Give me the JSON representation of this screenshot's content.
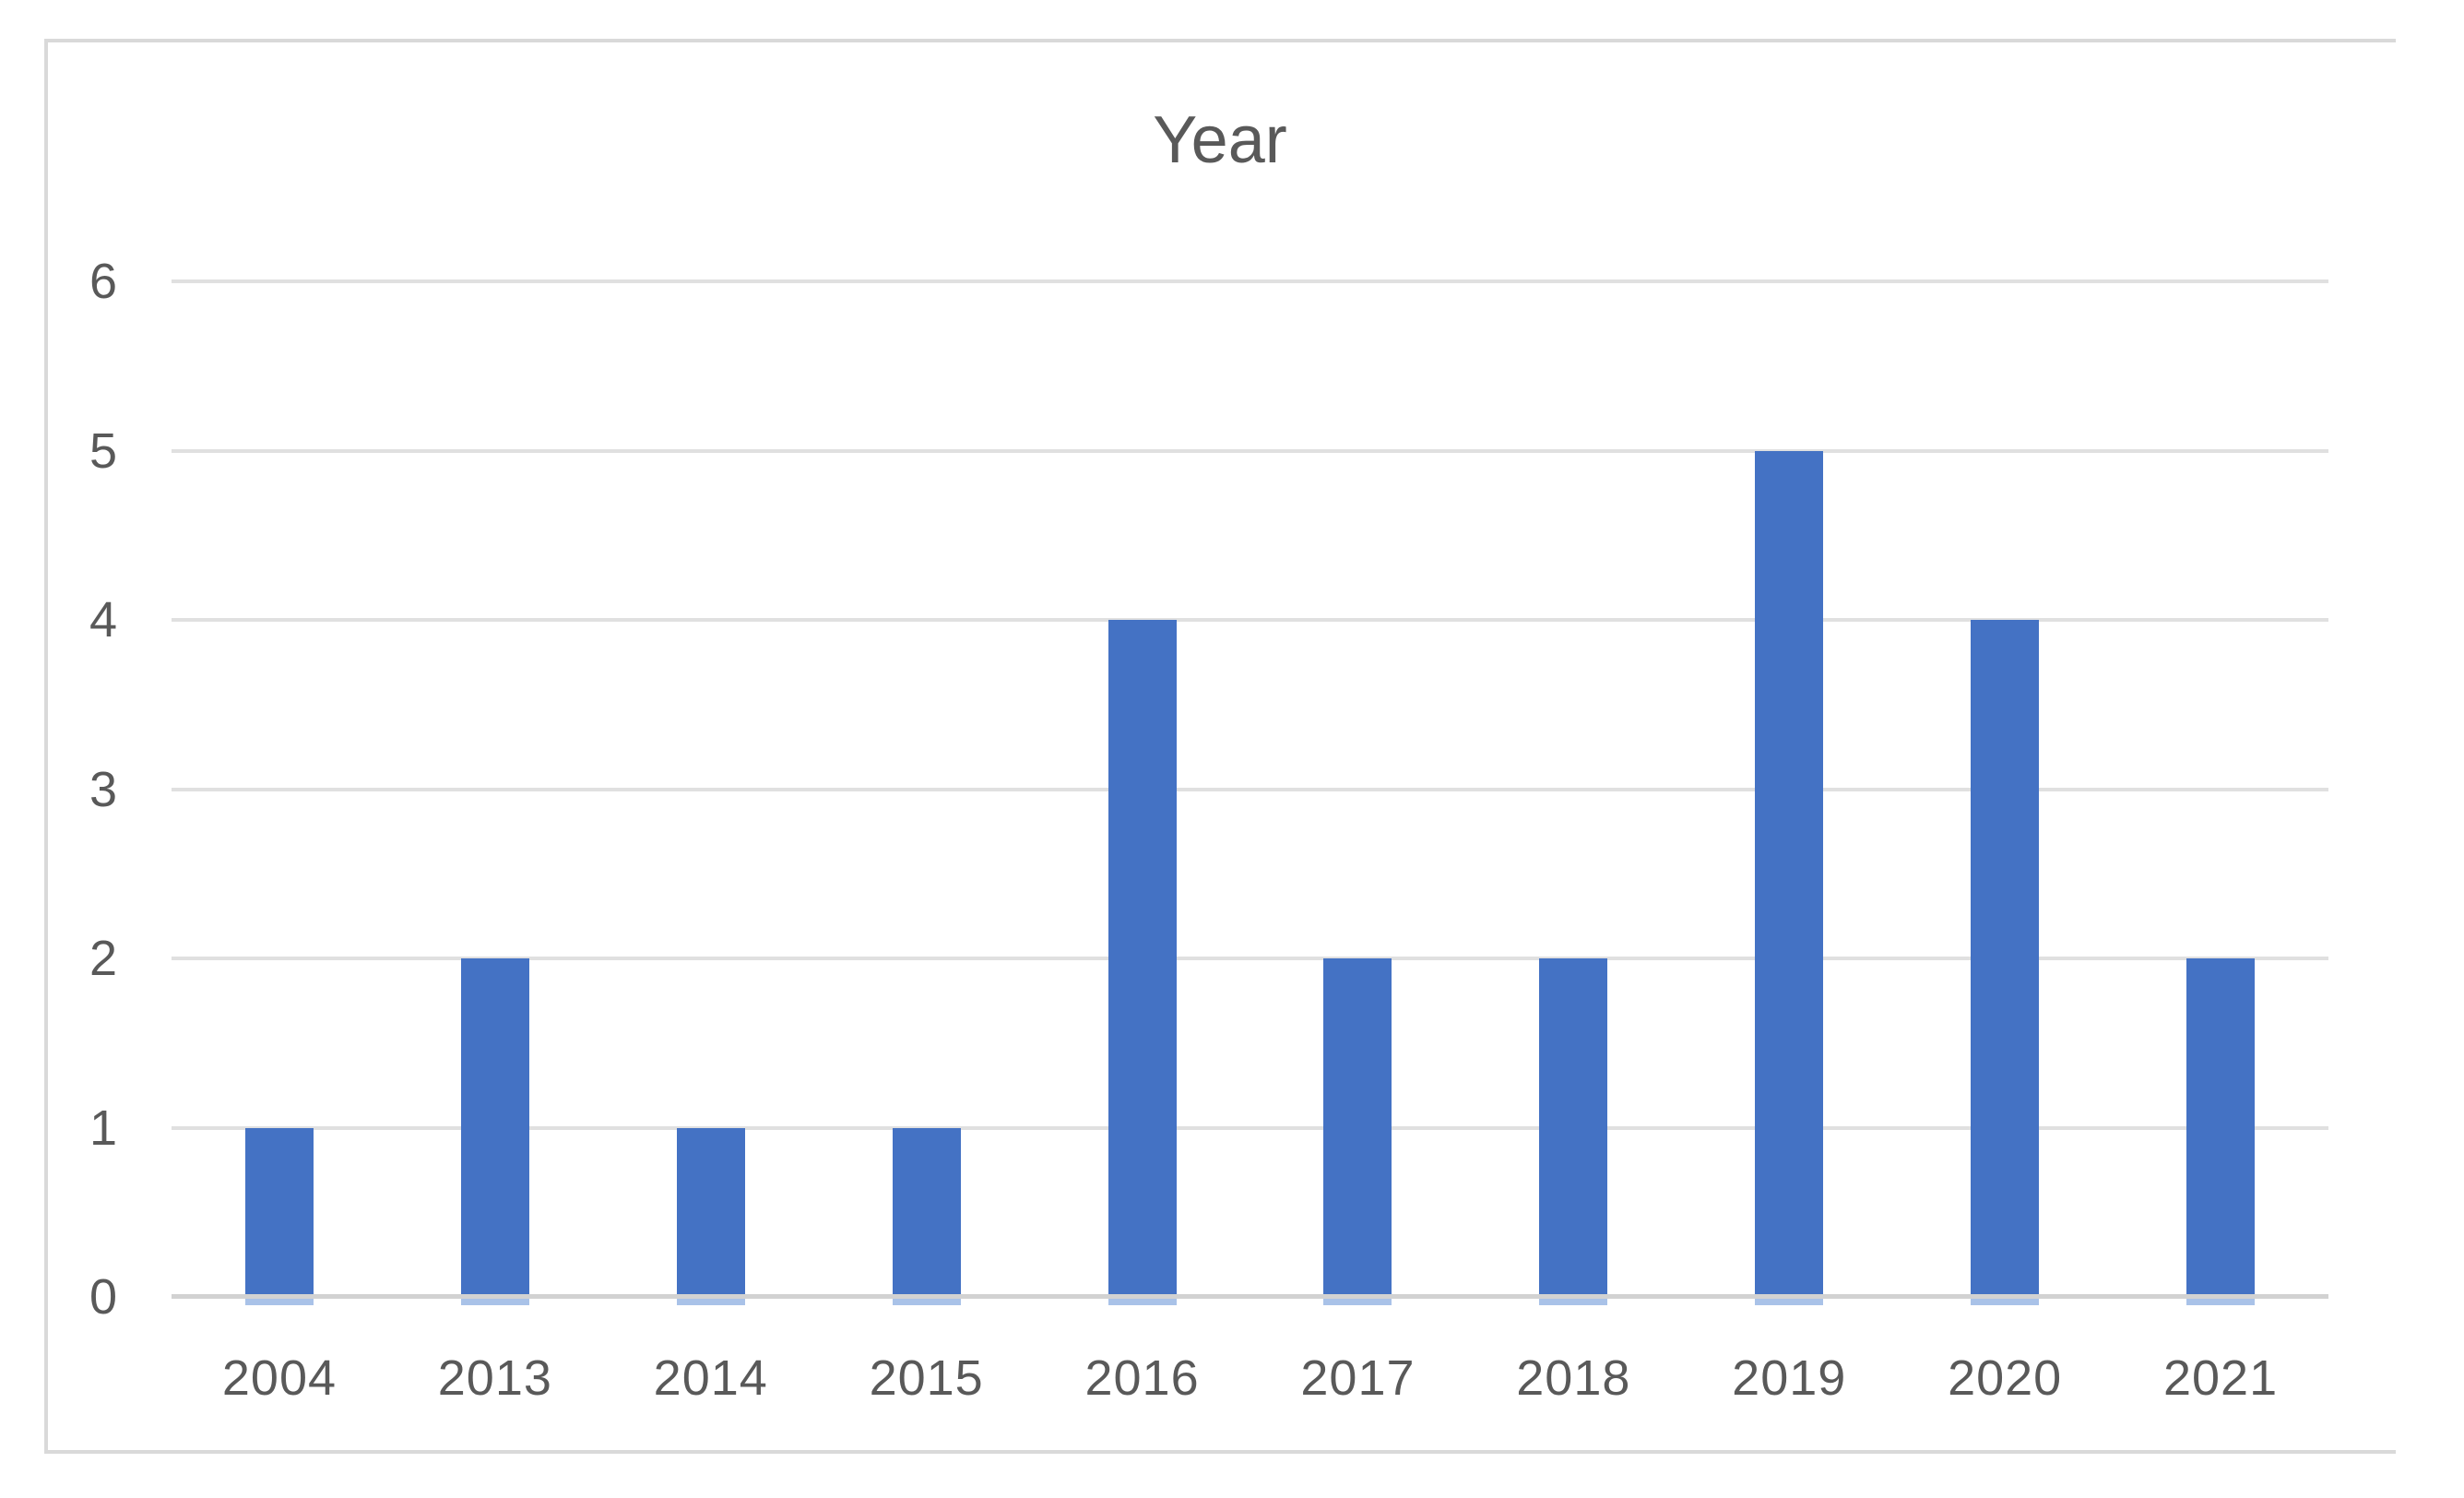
{
  "chart": {
    "colors": {
      "bar": "#4472C4",
      "bar_under_axis_stub": "#A9C2E8",
      "gridline": "#E0E0E0",
      "axis_line": "#D2D2D2",
      "frame_border": "#D9D9D9",
      "text": "#595959",
      "background": "#FFFFFF"
    }
  },
  "chart_data": {
    "type": "bar",
    "title": "Year",
    "categories": [
      "2004",
      "2013",
      "2014",
      "2015",
      "2016",
      "2017",
      "2018",
      "2019",
      "2020",
      "2021"
    ],
    "values": [
      1,
      2,
      1,
      1,
      4,
      2,
      2,
      5,
      4,
      2
    ],
    "xlabel": "",
    "ylabel": "",
    "ylim": [
      0,
      6
    ],
    "yticks": [
      0,
      1,
      2,
      3,
      4,
      5,
      6
    ],
    "grid": "horizontal",
    "legend": "none",
    "bar_color": "#4472C4"
  }
}
